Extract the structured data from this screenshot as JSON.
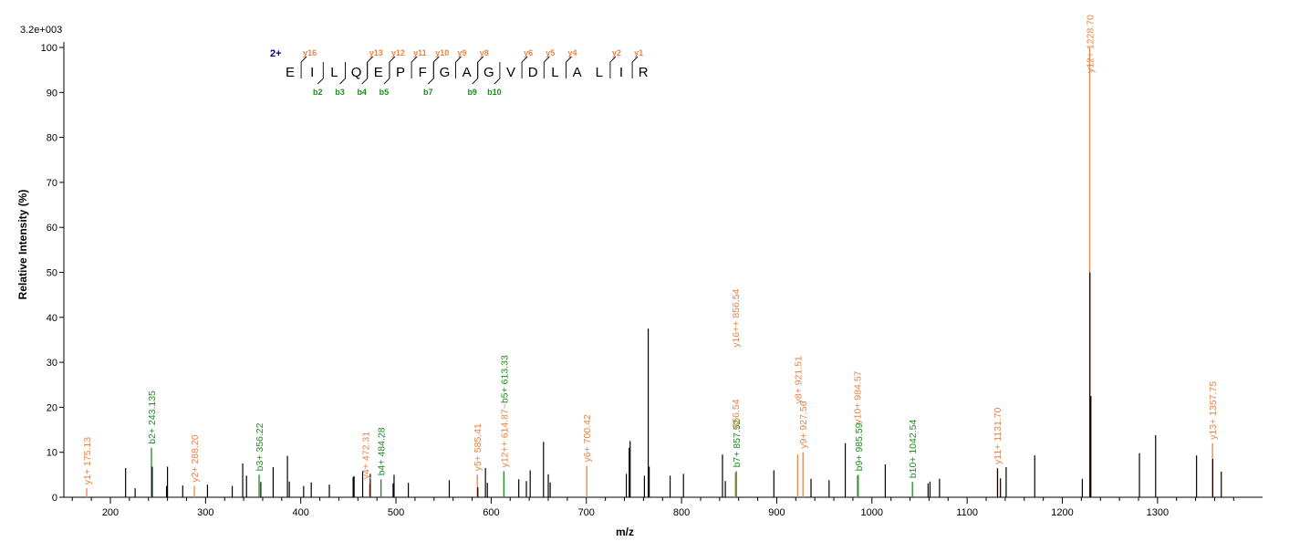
{
  "chart_data": {
    "type": "bar",
    "scale_max_label": "3.2e+003",
    "xlabel": "m/z",
    "ylabel": "Relative   Intensity (%)",
    "xlim": [
      155,
      1385
    ],
    "ylim": [
      0,
      100
    ],
    "x_ticks": [
      200,
      300,
      400,
      500,
      600,
      700,
      800,
      900,
      1000,
      1100,
      1200,
      1300
    ],
    "y_ticks": [
      0,
      10,
      20,
      30,
      40,
      50,
      60,
      70,
      80,
      90,
      100
    ],
    "grid": false,
    "colors": {
      "y_ion": "#e8834a",
      "b_ion": "#1f8c1f",
      "unmatched": "#000000",
      "charge": "#00008b"
    },
    "peaks": [
      {
        "mz": 175.13,
        "i": 2,
        "type": "y"
      },
      {
        "mz": 216,
        "i": 6.5,
        "type": "u"
      },
      {
        "mz": 226,
        "i": 2,
        "type": "u"
      },
      {
        "mz": 243.135,
        "i": 11,
        "type": "b"
      },
      {
        "mz": 244,
        "i": 6.8,
        "type": "u"
      },
      {
        "mz": 259,
        "i": 2.5,
        "type": "u"
      },
      {
        "mz": 260,
        "i": 6.8,
        "type": "u"
      },
      {
        "mz": 276,
        "i": 2.6,
        "type": "u"
      },
      {
        "mz": 288.2,
        "i": 2.5,
        "type": "y"
      },
      {
        "mz": 302,
        "i": 2.8,
        "type": "u"
      },
      {
        "mz": 328,
        "i": 2.5,
        "type": "u"
      },
      {
        "mz": 339,
        "i": 7.5,
        "type": "u"
      },
      {
        "mz": 343,
        "i": 4.8,
        "type": "u"
      },
      {
        "mz": 356.22,
        "i": 5,
        "type": "b"
      },
      {
        "mz": 358,
        "i": 3.4,
        "type": "u"
      },
      {
        "mz": 371,
        "i": 6.7,
        "type": "u"
      },
      {
        "mz": 386,
        "i": 9.2,
        "type": "u"
      },
      {
        "mz": 388,
        "i": 3.5,
        "type": "u"
      },
      {
        "mz": 403,
        "i": 2.5,
        "type": "u"
      },
      {
        "mz": 411,
        "i": 3.3,
        "type": "u"
      },
      {
        "mz": 430,
        "i": 2.8,
        "type": "u"
      },
      {
        "mz": 455,
        "i": 4.5,
        "type": "u"
      },
      {
        "mz": 456,
        "i": 4.7,
        "type": "u"
      },
      {
        "mz": 465,
        "i": 5.8,
        "type": "u"
      },
      {
        "mz": 472.31,
        "i": 3,
        "type": "y"
      },
      {
        "mz": 473,
        "i": 5.2,
        "type": "u"
      },
      {
        "mz": 484.28,
        "i": 4,
        "type": "b"
      },
      {
        "mz": 497,
        "i": 3.1,
        "type": "u"
      },
      {
        "mz": 498,
        "i": 5,
        "type": "u"
      },
      {
        "mz": 513,
        "i": 3.2,
        "type": "u"
      },
      {
        "mz": 556,
        "i": 3.8,
        "type": "u"
      },
      {
        "mz": 585.41,
        "i": 5,
        "type": "y"
      },
      {
        "mz": 586,
        "i": 2.2,
        "type": "u"
      },
      {
        "mz": 594,
        "i": 6.5,
        "type": "u"
      },
      {
        "mz": 596,
        "i": 3.2,
        "type": "u"
      },
      {
        "mz": 613.33,
        "i": 5.8,
        "type": "b"
      },
      {
        "mz": 629,
        "i": 4,
        "type": "u"
      },
      {
        "mz": 637,
        "i": 3.6,
        "type": "u"
      },
      {
        "mz": 641,
        "i": 6,
        "type": "u"
      },
      {
        "mz": 655,
        "i": 12.3,
        "type": "u"
      },
      {
        "mz": 660,
        "i": 5.1,
        "type": "u"
      },
      {
        "mz": 662,
        "i": 3.3,
        "type": "u"
      },
      {
        "mz": 700.42,
        "i": 7,
        "type": "y"
      },
      {
        "mz": 742,
        "i": 5.2,
        "type": "u"
      },
      {
        "mz": 745,
        "i": 11,
        "type": "u"
      },
      {
        "mz": 746,
        "i": 12.5,
        "type": "u"
      },
      {
        "mz": 761,
        "i": 4.8,
        "type": "u"
      },
      {
        "mz": 765,
        "i": 37.5,
        "type": "u"
      },
      {
        "mz": 766,
        "i": 6.8,
        "type": "u"
      },
      {
        "mz": 788,
        "i": 4.8,
        "type": "u"
      },
      {
        "mz": 802,
        "i": 5.2,
        "type": "u"
      },
      {
        "mz": 843,
        "i": 9.5,
        "type": "u"
      },
      {
        "mz": 846,
        "i": 3.6,
        "type": "u"
      },
      {
        "mz": 856.54,
        "i": 5.5,
        "type": "y"
      },
      {
        "mz": 857.52,
        "i": 5.8,
        "type": "b"
      },
      {
        "mz": 897,
        "i": 6,
        "type": "u"
      },
      {
        "mz": 922,
        "i": 9.5,
        "type": "y"
      },
      {
        "mz": 927.56,
        "i": 10,
        "type": "y"
      },
      {
        "mz": 936,
        "i": 4.1,
        "type": "u"
      },
      {
        "mz": 955,
        "i": 3.8,
        "type": "u"
      },
      {
        "mz": 972,
        "i": 12,
        "type": "u"
      },
      {
        "mz": 984.57,
        "i": 4.8,
        "type": "y"
      },
      {
        "mz": 985.59,
        "i": 5,
        "type": "b"
      },
      {
        "mz": 1014,
        "i": 7.3,
        "type": "u"
      },
      {
        "mz": 1042.54,
        "i": 3.4,
        "type": "b"
      },
      {
        "mz": 1059,
        "i": 3.1,
        "type": "u"
      },
      {
        "mz": 1061,
        "i": 3.5,
        "type": "u"
      },
      {
        "mz": 1071,
        "i": 4.1,
        "type": "u"
      },
      {
        "mz": 1131.7,
        "i": 6.5,
        "type": "y"
      },
      {
        "mz": 1132,
        "i": 6.4,
        "type": "u"
      },
      {
        "mz": 1135,
        "i": 4.2,
        "type": "u"
      },
      {
        "mz": 1141,
        "i": 6.7,
        "type": "u"
      },
      {
        "mz": 1171,
        "i": 9.3,
        "type": "u"
      },
      {
        "mz": 1221,
        "i": 4.1,
        "type": "u"
      },
      {
        "mz": 1228.7,
        "i": 100,
        "type": "y"
      },
      {
        "mz": 1229,
        "i": 50,
        "type": "u"
      },
      {
        "mz": 1230,
        "i": 22.5,
        "type": "u"
      },
      {
        "mz": 1281,
        "i": 9.8,
        "type": "u"
      },
      {
        "mz": 1298,
        "i": 13.8,
        "type": "u"
      },
      {
        "mz": 1341,
        "i": 9.3,
        "type": "u"
      },
      {
        "mz": 1357.75,
        "i": 12,
        "type": "y"
      },
      {
        "mz": 1358,
        "i": 8.5,
        "type": "u"
      },
      {
        "mz": 1367,
        "i": 5.7,
        "type": "u"
      }
    ],
    "peak_labels": [
      {
        "mz": 175.13,
        "i": 2,
        "text": "y1+ 175.13",
        "type": "y"
      },
      {
        "mz": 243.135,
        "i": 11,
        "text": "b2+ 243.135",
        "type": "b"
      },
      {
        "mz": 288.2,
        "i": 2.5,
        "text": "y2+ 288.20",
        "type": "y"
      },
      {
        "mz": 356.22,
        "i": 5,
        "text": "b3+ 356.22",
        "type": "b"
      },
      {
        "mz": 468,
        "i": 3.2,
        "text": "y4+ 472.31",
        "type": "y"
      },
      {
        "mz": 484.28,
        "i": 4,
        "text": "b4+ 484.28",
        "type": "b"
      },
      {
        "mz": 585.41,
        "i": 5,
        "text": "y5+ 585.41",
        "type": "y"
      },
      {
        "mz": 613.33,
        "i": 5.8,
        "text": "y12++ 614.87~b5+ 613.33",
        "type": "mix"
      },
      {
        "mz": 700.42,
        "i": 7,
        "text": "y6+ 700.42",
        "type": "y"
      },
      {
        "mz": 857.52,
        "i": 5.8,
        "text": "b7+ 857.52",
        "type": "b"
      },
      {
        "mz": 856.54,
        "i": 14.5,
        "text": "856.54",
        "type": "y"
      },
      {
        "mz": 856.54,
        "i": 32.5,
        "text": "y16++ 856.54",
        "type": "y"
      },
      {
        "mz": 922,
        "i": 20,
        "text": "y8+ 921.51",
        "type": "y"
      },
      {
        "mz": 927.56,
        "i": 10,
        "text": "y9+ 927.56",
        "type": "y"
      },
      {
        "mz": 984.57,
        "i": 15.5,
        "text": "y10+ 984.57",
        "type": "y"
      },
      {
        "mz": 985.59,
        "i": 5,
        "text": "b9+ 985.59",
        "type": "b"
      },
      {
        "mz": 1042.54,
        "i": 3.4,
        "text": "b10+ 1042.54",
        "type": "b"
      },
      {
        "mz": 1131.7,
        "i": 6.5,
        "text": "y11+ 1131.70",
        "type": "y"
      },
      {
        "mz": 1228.7,
        "i": 93.5,
        "text": "y12+ 1228.70",
        "type": "y"
      },
      {
        "mz": 1357.75,
        "i": 12,
        "text": "y13+ 1357.75",
        "type": "y"
      }
    ],
    "sequence": {
      "charge": "2+",
      "residues": [
        "E",
        "I",
        "L",
        "Q",
        "E",
        "P",
        "F",
        "G",
        "A",
        "G",
        "V",
        "D",
        "L",
        "A",
        "L",
        "I",
        "R"
      ],
      "y_ions": [
        {
          "after": 1,
          "label": "y16"
        },
        {
          "after": 4,
          "label": "y13"
        },
        {
          "after": 5,
          "label": "y12"
        },
        {
          "after": 6,
          "label": "y11"
        },
        {
          "after": 7,
          "label": "y10"
        },
        {
          "after": 8,
          "label": "y9"
        },
        {
          "after": 9,
          "label": "y8"
        },
        {
          "after": 11,
          "label": "y6"
        },
        {
          "after": 12,
          "label": "y5"
        },
        {
          "after": 13,
          "label": "y4"
        },
        {
          "after": 15,
          "label": "y2"
        },
        {
          "after": 16,
          "label": "y1"
        }
      ],
      "b_ions": [
        {
          "after": 2,
          "label": "b2"
        },
        {
          "after": 3,
          "label": "b3"
        },
        {
          "after": 4,
          "label": "b4"
        },
        {
          "after": 5,
          "label": "b5"
        },
        {
          "after": 7,
          "label": "b7"
        },
        {
          "after": 9,
          "label": "b9"
        },
        {
          "after": 10,
          "label": "b10"
        }
      ]
    }
  }
}
